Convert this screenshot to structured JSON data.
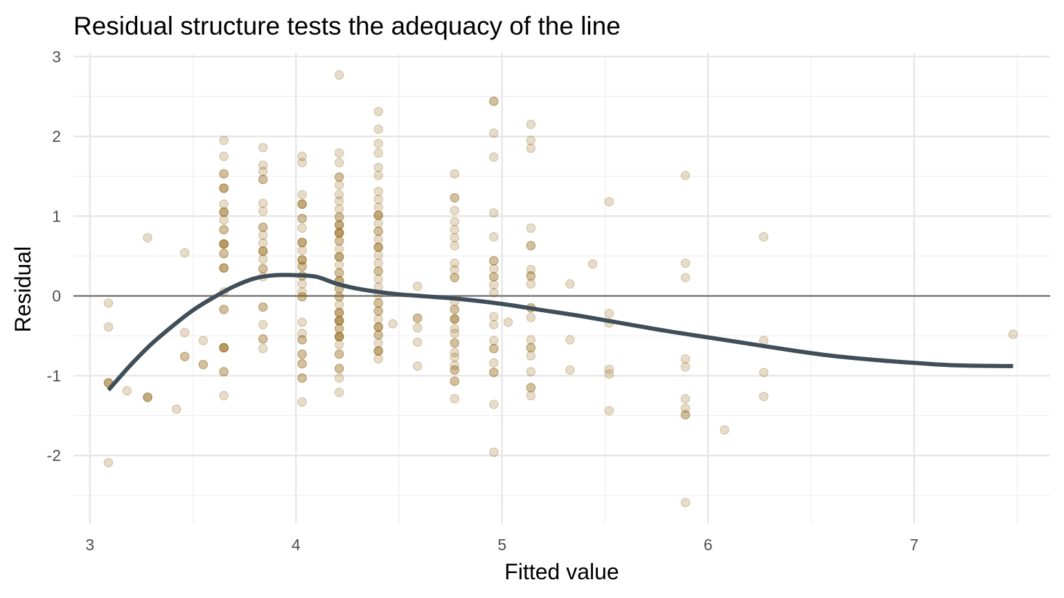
{
  "chart_data": {
    "type": "scatter",
    "title": "Residual structure tests the adequacy of the line",
    "xlabel": "Fitted value",
    "ylabel": "Residual",
    "xlim": [
      2.92,
      7.66
    ],
    "ylim": [
      -2.85,
      3.05
    ],
    "x_ticks": [
      3,
      4,
      5,
      6,
      7
    ],
    "x_tick_labels": [
      "3",
      "4",
      "5",
      "6",
      "7"
    ],
    "y_ticks": [
      -2,
      -1,
      0,
      1,
      2,
      3
    ],
    "y_tick_labels": [
      "-2",
      "-1",
      "0",
      "1",
      "2",
      "3"
    ],
    "x_minor_ticks": [
      3.5,
      4.5,
      5.5,
      6.5,
      7.5
    ],
    "y_minor_ticks": [
      -2.5,
      -1.5,
      -0.5,
      0.5,
      1.5,
      2.5
    ],
    "grid": true,
    "reference_line_y": 0,
    "colors": {
      "points": "#8B5E0A",
      "smooth": "#3F4E59",
      "reference": "#808080",
      "grid": "#e6e6e6"
    },
    "point_opacity": 0.22,
    "points": [
      [
        3.09,
        -0.09
      ],
      [
        3.09,
        -0.39
      ],
      [
        3.09,
        -1.09
      ],
      [
        3.09,
        -1.09
      ],
      [
        3.09,
        -1.09
      ],
      [
        3.09,
        -2.09
      ],
      [
        3.18,
        -1.19
      ],
      [
        3.28,
        0.73
      ],
      [
        3.28,
        -1.27
      ],
      [
        3.28,
        -1.27
      ],
      [
        3.28,
        -1.27
      ],
      [
        3.42,
        -1.42
      ],
      [
        3.46,
        0.54
      ],
      [
        3.46,
        -0.46
      ],
      [
        3.46,
        -0.76
      ],
      [
        3.46,
        -0.76
      ],
      [
        3.55,
        -0.56
      ],
      [
        3.55,
        -0.86
      ],
      [
        3.55,
        -0.86
      ],
      [
        3.65,
        1.95
      ],
      [
        3.65,
        1.75
      ],
      [
        3.65,
        1.53
      ],
      [
        3.65,
        1.53
      ],
      [
        3.65,
        1.35
      ],
      [
        3.65,
        1.35
      ],
      [
        3.65,
        1.35
      ],
      [
        3.65,
        1.15
      ],
      [
        3.65,
        1.05
      ],
      [
        3.65,
        1.05
      ],
      [
        3.65,
        1.05
      ],
      [
        3.65,
        0.95
      ],
      [
        3.65,
        0.83
      ],
      [
        3.65,
        0.83
      ],
      [
        3.65,
        0.65
      ],
      [
        3.65,
        0.65
      ],
      [
        3.65,
        0.65
      ],
      [
        3.65,
        0.65
      ],
      [
        3.65,
        0.53
      ],
      [
        3.65,
        0.53
      ],
      [
        3.65,
        0.35
      ],
      [
        3.65,
        0.35
      ],
      [
        3.65,
        0.35
      ],
      [
        3.65,
        0.05
      ],
      [
        3.65,
        -0.17
      ],
      [
        3.65,
        -0.17
      ],
      [
        3.65,
        -0.65
      ],
      [
        3.65,
        -0.65
      ],
      [
        3.65,
        -0.65
      ],
      [
        3.65,
        -0.65
      ],
      [
        3.65,
        -0.95
      ],
      [
        3.65,
        -0.95
      ],
      [
        3.65,
        -1.25
      ],
      [
        3.84,
        1.86
      ],
      [
        3.84,
        1.64
      ],
      [
        3.84,
        1.56
      ],
      [
        3.84,
        1.46
      ],
      [
        3.84,
        1.46
      ],
      [
        3.84,
        1.16
      ],
      [
        3.84,
        1.06
      ],
      [
        3.84,
        0.86
      ],
      [
        3.84,
        0.86
      ],
      [
        3.84,
        0.76
      ],
      [
        3.84,
        0.66
      ],
      [
        3.84,
        0.56
      ],
      [
        3.84,
        0.56
      ],
      [
        3.84,
        0.56
      ],
      [
        3.84,
        0.46
      ],
      [
        3.84,
        0.34
      ],
      [
        3.84,
        0.34
      ],
      [
        3.84,
        0.24
      ],
      [
        3.84,
        -0.14
      ],
      [
        3.84,
        -0.14
      ],
      [
        3.84,
        -0.36
      ],
      [
        3.84,
        -0.54
      ],
      [
        3.84,
        -0.54
      ],
      [
        3.84,
        -0.66
      ],
      [
        4.03,
        1.75
      ],
      [
        4.03,
        1.67
      ],
      [
        4.03,
        1.27
      ],
      [
        4.03,
        1.15
      ],
      [
        4.03,
        1.15
      ],
      [
        4.03,
        1.15
      ],
      [
        4.03,
        0.97
      ],
      [
        4.03,
        0.97
      ],
      [
        4.03,
        0.85
      ],
      [
        4.03,
        0.67
      ],
      [
        4.03,
        0.67
      ],
      [
        4.03,
        0.67
      ],
      [
        4.03,
        0.57
      ],
      [
        4.03,
        0.45
      ],
      [
        4.03,
        0.45
      ],
      [
        4.03,
        0.45
      ],
      [
        4.03,
        0.37
      ],
      [
        4.03,
        0.37
      ],
      [
        4.03,
        0.25
      ],
      [
        4.03,
        0.25
      ],
      [
        4.03,
        0.15
      ],
      [
        4.03,
        0.05
      ],
      [
        4.03,
        -0.01
      ],
      [
        4.03,
        -0.01
      ],
      [
        4.03,
        -0.33
      ],
      [
        4.03,
        -0.47
      ],
      [
        4.03,
        -0.55
      ],
      [
        4.03,
        -0.55
      ],
      [
        4.03,
        -0.73
      ],
      [
        4.03,
        -0.73
      ],
      [
        4.03,
        -0.85
      ],
      [
        4.03,
        -0.85
      ],
      [
        4.03,
        -1.03
      ],
      [
        4.03,
        -1.03
      ],
      [
        4.03,
        -1.33
      ],
      [
        4.21,
        2.77
      ],
      [
        4.21,
        1.79
      ],
      [
        4.21,
        1.67
      ],
      [
        4.21,
        1.49
      ],
      [
        4.21,
        1.49
      ],
      [
        4.21,
        1.39
      ],
      [
        4.21,
        1.27
      ],
      [
        4.21,
        1.19
      ],
      [
        4.21,
        1.09
      ],
      [
        4.21,
        0.99
      ],
      [
        4.21,
        0.99
      ],
      [
        4.21,
        0.89
      ],
      [
        4.21,
        0.89
      ],
      [
        4.21,
        0.89
      ],
      [
        4.21,
        0.79
      ],
      [
        4.21,
        0.79
      ],
      [
        4.21,
        0.79
      ],
      [
        4.21,
        0.79
      ],
      [
        4.21,
        0.69
      ],
      [
        4.21,
        0.69
      ],
      [
        4.21,
        0.59
      ],
      [
        4.21,
        0.49
      ],
      [
        4.21,
        0.49
      ],
      [
        4.21,
        0.49
      ],
      [
        4.21,
        0.39
      ],
      [
        4.21,
        0.29
      ],
      [
        4.21,
        0.29
      ],
      [
        4.21,
        0.19
      ],
      [
        4.21,
        0.19
      ],
      [
        4.21,
        0.19
      ],
      [
        4.21,
        0.09
      ],
      [
        4.21,
        0.09
      ],
      [
        4.21,
        -0.01
      ],
      [
        4.21,
        -0.01
      ],
      [
        4.21,
        -0.11
      ],
      [
        4.21,
        -0.21
      ],
      [
        4.21,
        -0.21
      ],
      [
        4.21,
        -0.21
      ],
      [
        4.21,
        -0.31
      ],
      [
        4.21,
        -0.31
      ],
      [
        4.21,
        -0.31
      ],
      [
        4.21,
        -0.31
      ],
      [
        4.21,
        -0.41
      ],
      [
        4.21,
        -0.41
      ],
      [
        4.21,
        -0.51
      ],
      [
        4.21,
        -0.51
      ],
      [
        4.21,
        -0.51
      ],
      [
        4.21,
        -0.51
      ],
      [
        4.21,
        -0.61
      ],
      [
        4.21,
        -0.73
      ],
      [
        4.21,
        -0.73
      ],
      [
        4.21,
        -0.91
      ],
      [
        4.21,
        -0.91
      ],
      [
        4.21,
        -1.03
      ],
      [
        4.21,
        -1.21
      ],
      [
        4.4,
        2.31
      ],
      [
        4.4,
        2.09
      ],
      [
        4.4,
        1.91
      ],
      [
        4.4,
        1.79
      ],
      [
        4.4,
        1.61
      ],
      [
        4.4,
        1.51
      ],
      [
        4.4,
        1.31
      ],
      [
        4.4,
        1.21
      ],
      [
        4.4,
        1.11
      ],
      [
        4.4,
        1.01
      ],
      [
        4.4,
        1.01
      ],
      [
        4.4,
        1.01
      ],
      [
        4.4,
        0.91
      ],
      [
        4.4,
        0.81
      ],
      [
        4.4,
        0.81
      ],
      [
        4.4,
        0.71
      ],
      [
        4.4,
        0.61
      ],
      [
        4.4,
        0.61
      ],
      [
        4.4,
        0.61
      ],
      [
        4.4,
        0.51
      ],
      [
        4.4,
        0.41
      ],
      [
        4.4,
        0.31
      ],
      [
        4.4,
        0.31
      ],
      [
        4.4,
        0.21
      ],
      [
        4.4,
        0.11
      ],
      [
        4.4,
        0.01
      ],
      [
        4.4,
        -0.09
      ],
      [
        4.4,
        -0.09
      ],
      [
        4.4,
        -0.19
      ],
      [
        4.4,
        -0.19
      ],
      [
        4.4,
        -0.29
      ],
      [
        4.4,
        -0.39
      ],
      [
        4.4,
        -0.39
      ],
      [
        4.4,
        -0.39
      ],
      [
        4.4,
        -0.49
      ],
      [
        4.4,
        -0.49
      ],
      [
        4.4,
        -0.59
      ],
      [
        4.4,
        -0.69
      ],
      [
        4.4,
        -0.69
      ],
      [
        4.4,
        -0.69
      ],
      [
        4.4,
        -0.79
      ],
      [
        4.47,
        -0.35
      ],
      [
        4.59,
        0.12
      ],
      [
        4.59,
        -0.28
      ],
      [
        4.59,
        -0.28
      ],
      [
        4.59,
        -0.4
      ],
      [
        4.59,
        -0.58
      ],
      [
        4.59,
        -0.88
      ],
      [
        4.77,
        1.53
      ],
      [
        4.77,
        1.23
      ],
      [
        4.77,
        1.23
      ],
      [
        4.77,
        1.07
      ],
      [
        4.77,
        0.93
      ],
      [
        4.77,
        0.83
      ],
      [
        4.77,
        0.73
      ],
      [
        4.77,
        0.63
      ],
      [
        4.77,
        0.41
      ],
      [
        4.77,
        0.33
      ],
      [
        4.77,
        0.23
      ],
      [
        4.77,
        0.23
      ],
      [
        4.77,
        -0.07
      ],
      [
        4.77,
        -0.17
      ],
      [
        4.77,
        -0.17
      ],
      [
        4.77,
        -0.29
      ],
      [
        4.77,
        -0.29
      ],
      [
        4.77,
        -0.29
      ],
      [
        4.77,
        -0.41
      ],
      [
        4.77,
        -0.47
      ],
      [
        4.77,
        -0.59
      ],
      [
        4.77,
        -0.59
      ],
      [
        4.77,
        -0.71
      ],
      [
        4.77,
        -0.77
      ],
      [
        4.77,
        -0.87
      ],
      [
        4.77,
        -0.93
      ],
      [
        4.77,
        -0.93
      ],
      [
        4.77,
        -1.07
      ],
      [
        4.77,
        -1.07
      ],
      [
        4.77,
        -1.29
      ],
      [
        4.96,
        2.44
      ],
      [
        4.96,
        2.44
      ],
      [
        4.96,
        2.04
      ],
      [
        4.96,
        1.74
      ],
      [
        4.96,
        1.04
      ],
      [
        4.96,
        0.74
      ],
      [
        4.96,
        0.44
      ],
      [
        4.96,
        0.44
      ],
      [
        4.96,
        0.34
      ],
      [
        4.96,
        0.24
      ],
      [
        4.96,
        0.24
      ],
      [
        4.96,
        0.14
      ],
      [
        4.96,
        0.04
      ],
      [
        4.96,
        -0.26
      ],
      [
        4.96,
        -0.36
      ],
      [
        4.96,
        -0.56
      ],
      [
        4.96,
        -0.66
      ],
      [
        4.96,
        -0.66
      ],
      [
        4.96,
        -0.84
      ],
      [
        4.96,
        -0.96
      ],
      [
        4.96,
        -0.96
      ],
      [
        4.96,
        -1.36
      ],
      [
        4.96,
        -1.96
      ],
      [
        5.03,
        -0.33
      ],
      [
        5.14,
        2.15
      ],
      [
        5.14,
        1.95
      ],
      [
        5.14,
        1.85
      ],
      [
        5.14,
        0.85
      ],
      [
        5.14,
        0.63
      ],
      [
        5.14,
        0.63
      ],
      [
        5.14,
        0.33
      ],
      [
        5.14,
        0.25
      ],
      [
        5.14,
        0.25
      ],
      [
        5.14,
        0.15
      ],
      [
        5.14,
        -0.15
      ],
      [
        5.14,
        -0.15
      ],
      [
        5.14,
        -0.27
      ],
      [
        5.14,
        -0.55
      ],
      [
        5.14,
        -0.65
      ],
      [
        5.14,
        -0.65
      ],
      [
        5.14,
        -0.75
      ],
      [
        5.14,
        -0.95
      ],
      [
        5.14,
        -1.15
      ],
      [
        5.14,
        -1.15
      ],
      [
        5.14,
        -1.25
      ],
      [
        5.33,
        0.15
      ],
      [
        5.33,
        -0.55
      ],
      [
        5.33,
        -0.93
      ],
      [
        5.44,
        0.4
      ],
      [
        5.52,
        1.18
      ],
      [
        5.52,
        -0.22
      ],
      [
        5.52,
        -0.34
      ],
      [
        5.52,
        -0.92
      ],
      [
        5.52,
        -0.98
      ],
      [
        5.52,
        -1.44
      ],
      [
        5.89,
        1.51
      ],
      [
        5.89,
        0.41
      ],
      [
        5.89,
        0.23
      ],
      [
        5.89,
        -0.79
      ],
      [
        5.89,
        -0.89
      ],
      [
        5.89,
        -1.29
      ],
      [
        5.89,
        -1.41
      ],
      [
        5.89,
        -1.49
      ],
      [
        5.89,
        -1.49
      ],
      [
        5.89,
        -2.59
      ],
      [
        6.08,
        -1.68
      ],
      [
        6.27,
        0.74
      ],
      [
        6.27,
        -0.56
      ],
      [
        6.27,
        -0.96
      ],
      [
        6.27,
        -1.26
      ],
      [
        7.48,
        -0.48
      ]
    ],
    "smooth_line": {
      "x": [
        3.09,
        3.2,
        3.3,
        3.4,
        3.5,
        3.6,
        3.7,
        3.8,
        3.9,
        4.0,
        4.1,
        4.2,
        4.3,
        4.4,
        4.5,
        4.6,
        4.8,
        5.0,
        5.2,
        5.4,
        5.6,
        5.8,
        6.0,
        6.2,
        6.4,
        6.6,
        6.8,
        7.0,
        7.2,
        7.48
      ],
      "y": [
        -1.18,
        -0.86,
        -0.6,
        -0.38,
        -0.18,
        -0.02,
        0.12,
        0.22,
        0.26,
        0.26,
        0.24,
        0.15,
        0.09,
        0.05,
        0.02,
        0.0,
        -0.04,
        -0.1,
        -0.18,
        -0.26,
        -0.35,
        -0.44,
        -0.52,
        -0.6,
        -0.68,
        -0.75,
        -0.8,
        -0.84,
        -0.87,
        -0.88
      ]
    }
  }
}
